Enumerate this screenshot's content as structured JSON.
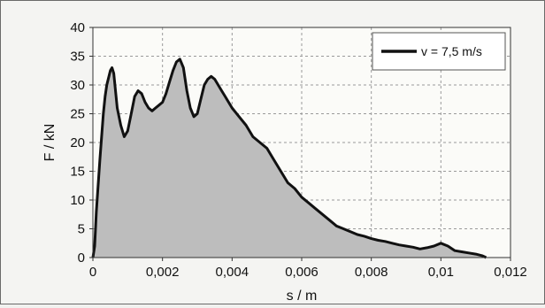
{
  "chart_data": {
    "type": "area",
    "xlabel": "s / m",
    "ylabel": "F / kN",
    "xlim": [
      0,
      0.012
    ],
    "ylim": [
      0,
      40
    ],
    "x_ticks": [
      0,
      0.002,
      0.004,
      0.006,
      0.008,
      0.01,
      0.012
    ],
    "x_tick_labels": [
      "0",
      "0,002",
      "0,004",
      "0,006",
      "0,008",
      "0,01",
      "0,012"
    ],
    "y_ticks": [
      0,
      5,
      10,
      15,
      20,
      25,
      30,
      35,
      40
    ],
    "y_tick_labels": [
      "0",
      "5",
      "10",
      "15",
      "20",
      "25",
      "30",
      "35",
      "40"
    ],
    "grid": "dashed",
    "legend_position": "top-right",
    "colors": {
      "fill": "#bdbdbd",
      "line": "#111111",
      "grid": "#9a9a9a"
    },
    "series": [
      {
        "name": "v = 7,5 m/s",
        "x": [
          0,
          5e-05,
          0.0001,
          0.0002,
          0.0003,
          0.00035,
          0.0004,
          0.0005,
          0.00055,
          0.0006,
          0.0007,
          0.0008,
          0.0009,
          0.001,
          0.0011,
          0.0012,
          0.0013,
          0.0014,
          0.0015,
          0.0016,
          0.0017,
          0.0018,
          0.0019,
          0.002,
          0.0021,
          0.0022,
          0.0023,
          0.0024,
          0.0025,
          0.0026,
          0.0027,
          0.0028,
          0.0029,
          0.003,
          0.0031,
          0.0032,
          0.0033,
          0.0034,
          0.0035,
          0.0036,
          0.0037,
          0.0038,
          0.0039,
          0.004,
          0.0042,
          0.0044,
          0.0046,
          0.0048,
          0.005,
          0.0052,
          0.0054,
          0.0056,
          0.0058,
          0.006,
          0.0062,
          0.0064,
          0.0066,
          0.0068,
          0.007,
          0.0072,
          0.0074,
          0.0076,
          0.0078,
          0.008,
          0.0082,
          0.0084,
          0.0086,
          0.0088,
          0.009,
          0.0092,
          0.0094,
          0.0096,
          0.0098,
          0.01,
          0.0102,
          0.0104,
          0.0106,
          0.0108,
          0.011,
          0.0112,
          0.0113
        ],
        "y": [
          0,
          2,
          8,
          17,
          25,
          28,
          30,
          32.5,
          33,
          32,
          26,
          23,
          21,
          22,
          25,
          28,
          29,
          28.5,
          27,
          26,
          25.5,
          26,
          26.5,
          27,
          28.5,
          30.5,
          32.5,
          34,
          34.5,
          33,
          29,
          26,
          24.5,
          25,
          27.5,
          30,
          31,
          31.5,
          31,
          30,
          29,
          28,
          27,
          26,
          24.5,
          23,
          21,
          20,
          19,
          17,
          15,
          13,
          12,
          10.5,
          9.5,
          8.5,
          7.5,
          6.5,
          5.5,
          5,
          4.5,
          4,
          3.7,
          3.3,
          3,
          2.8,
          2.5,
          2.2,
          2,
          1.8,
          1.5,
          1.7,
          2,
          2.5,
          2,
          1.2,
          1,
          0.8,
          0.6,
          0.3,
          0
        ]
      }
    ]
  }
}
